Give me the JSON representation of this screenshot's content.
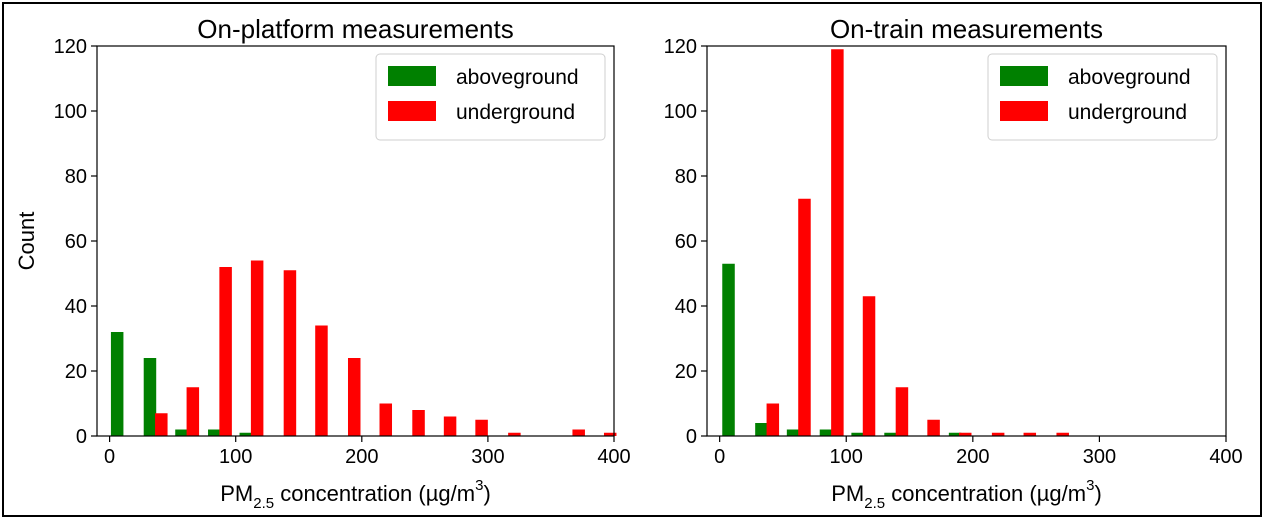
{
  "chart_data": [
    {
      "type": "bar",
      "title": "On-platform measurements",
      "xlabel": {
        "prefix": "PM",
        "sub": "2.5",
        "mid": " concentration (µg/m",
        "sup": "3",
        "suffix": ")"
      },
      "ylabel": "Count",
      "xlim": [
        -10,
        400
      ],
      "ylim": [
        0,
        120
      ],
      "xticks": [
        "0",
        "100",
        "200",
        "300",
        "400"
      ],
      "yticks": [
        "0",
        "20",
        "40",
        "60",
        "80",
        "100",
        "120"
      ],
      "grid": false,
      "legend_position": "top-right",
      "series": [
        {
          "name": "aboveground",
          "color": "#008000",
          "x": [
            6,
            32,
            57,
            83,
            108
          ],
          "values": [
            32,
            24,
            2,
            2,
            1
          ]
        },
        {
          "name": "underground",
          "color": "#ff0000",
          "x": [
            41,
            66,
            92,
            117,
            143,
            168,
            194,
            219,
            245,
            270,
            295,
            321,
            372,
            397
          ],
          "values": [
            7,
            15,
            52,
            54,
            51,
            34,
            24,
            10,
            8,
            6,
            5,
            1,
            2,
            1
          ]
        }
      ]
    },
    {
      "type": "bar",
      "title": "On-train measurements",
      "xlabel": {
        "prefix": "PM",
        "sub": "2.5",
        "mid": " concentration (µg/m",
        "sup": "3",
        "suffix": ")"
      },
      "ylabel": "",
      "xlim": [
        -10,
        400
      ],
      "ylim": [
        0,
        120
      ],
      "xticks": [
        "0",
        "100",
        "200",
        "300",
        "400"
      ],
      "yticks": [
        "0",
        "20",
        "40",
        "60",
        "80",
        "100",
        "120"
      ],
      "grid": false,
      "legend_position": "top-right",
      "series": [
        {
          "name": "aboveground",
          "color": "#008000",
          "x": [
            7,
            33,
            58,
            84,
            109,
            135,
            186
          ],
          "values": [
            53,
            4,
            2,
            2,
            1,
            1,
            1
          ]
        },
        {
          "name": "underground",
          "color": "#ff0000",
          "x": [
            42,
            67,
            93,
            118,
            144,
            169,
            194,
            220,
            245,
            271
          ],
          "values": [
            10,
            73,
            119,
            43,
            15,
            5,
            1,
            1,
            1,
            1
          ]
        }
      ]
    }
  ]
}
